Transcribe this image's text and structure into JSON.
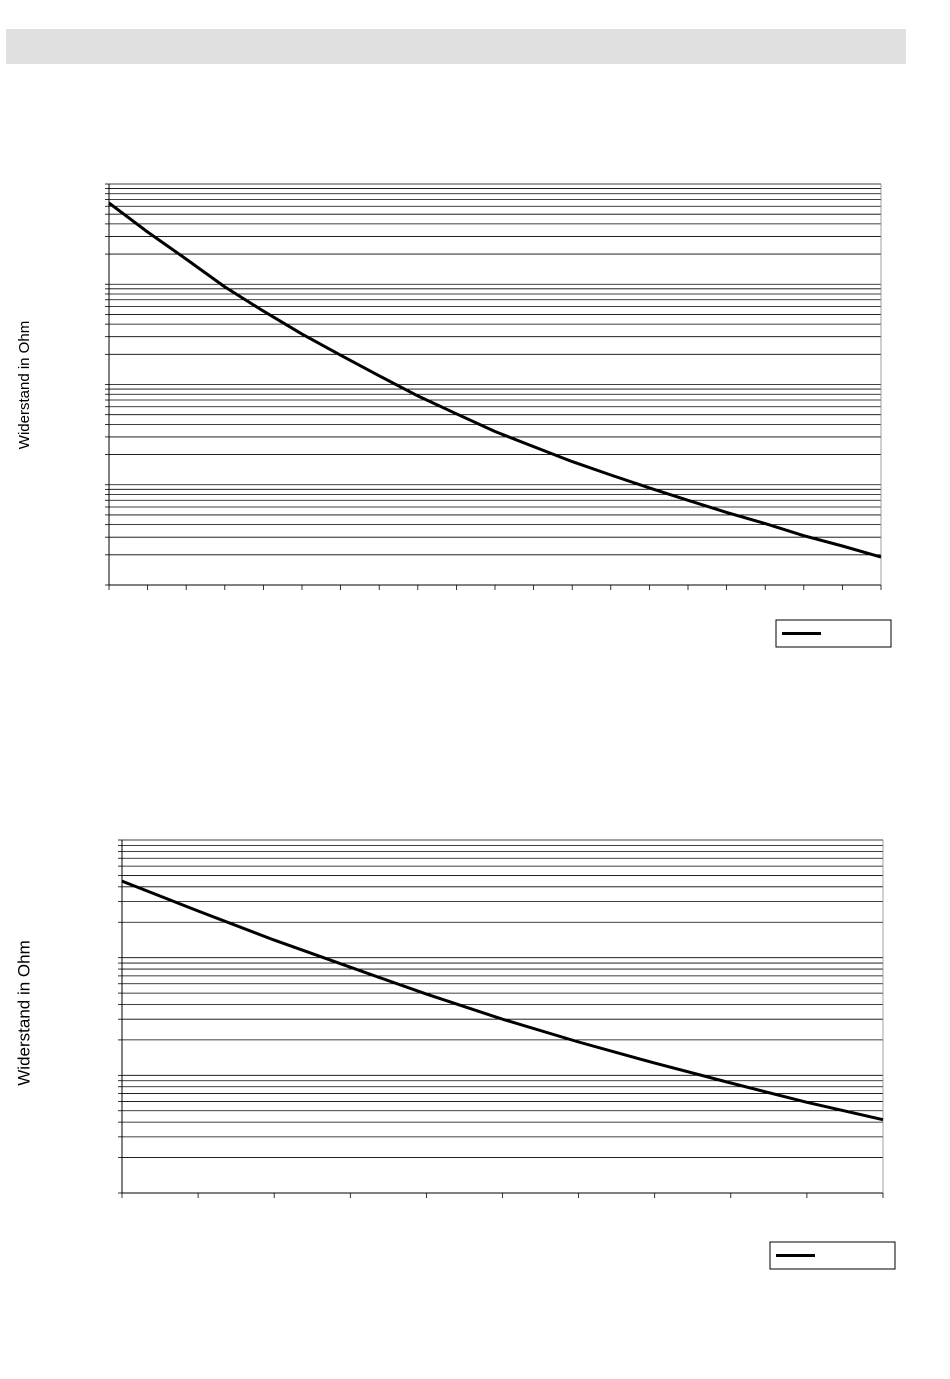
{
  "chart_data": [
    {
      "type": "line",
      "y_label": "Widerstand in Ohm",
      "log_y": true,
      "grid": true,
      "legend": "bottom-right",
      "x": [
        0,
        1,
        2,
        3,
        4,
        5,
        6,
        7,
        8,
        9,
        10,
        11,
        12,
        13,
        14,
        15,
        16,
        17,
        18,
        19,
        20
      ],
      "xlim": [
        0,
        20
      ],
      "xticks": [
        0,
        1,
        2,
        3,
        4,
        5,
        6,
        7,
        8,
        9,
        10,
        11,
        12,
        13,
        14,
        15,
        16,
        17,
        18,
        19,
        20
      ],
      "ylim": [
        1,
        10000
      ],
      "yticks": [
        1,
        2,
        3,
        4,
        5,
        6,
        7,
        8,
        9,
        10,
        20,
        30,
        40,
        50,
        60,
        70,
        80,
        90,
        100,
        200,
        300,
        400,
        500,
        600,
        700,
        800,
        900,
        1000,
        2000,
        3000,
        4000,
        5000,
        6000,
        7000,
        8000,
        9000,
        10000
      ],
      "series": [
        {
          "color": "#000000",
          "values": [
            6460,
            3320,
            1780,
            940,
            540,
            318,
            196,
            122,
            77,
            51,
            34,
            24,
            17,
            12.5,
            9.3,
            7.0,
            5.3,
            4.1,
            3.1,
            2.45,
            1.9
          ]
        }
      ]
    },
    {
      "type": "line",
      "y_label": "Widerstand in Ohm",
      "log_y": true,
      "grid": true,
      "legend": "bottom-right",
      "x": [
        0,
        1,
        2,
        3,
        4,
        5,
        6,
        7,
        8,
        9,
        10
      ],
      "xlim": [
        0,
        10
      ],
      "xticks": [
        0,
        1,
        2,
        3,
        4,
        5,
        6,
        7,
        8,
        9,
        10
      ],
      "ylim": [
        1,
        1000
      ],
      "yticks": [
        1,
        2,
        3,
        4,
        5,
        6,
        7,
        8,
        9,
        10,
        20,
        30,
        40,
        50,
        60,
        70,
        80,
        90,
        100,
        200,
        300,
        400,
        500,
        600,
        700,
        800,
        900,
        1000
      ],
      "series": [
        {
          "color": "#000000",
          "values": [
            447,
            249,
            141,
            83,
            49,
            30,
            19.2,
            12.7,
            8.6,
            5.9,
            4.2
          ]
        }
      ]
    }
  ]
}
